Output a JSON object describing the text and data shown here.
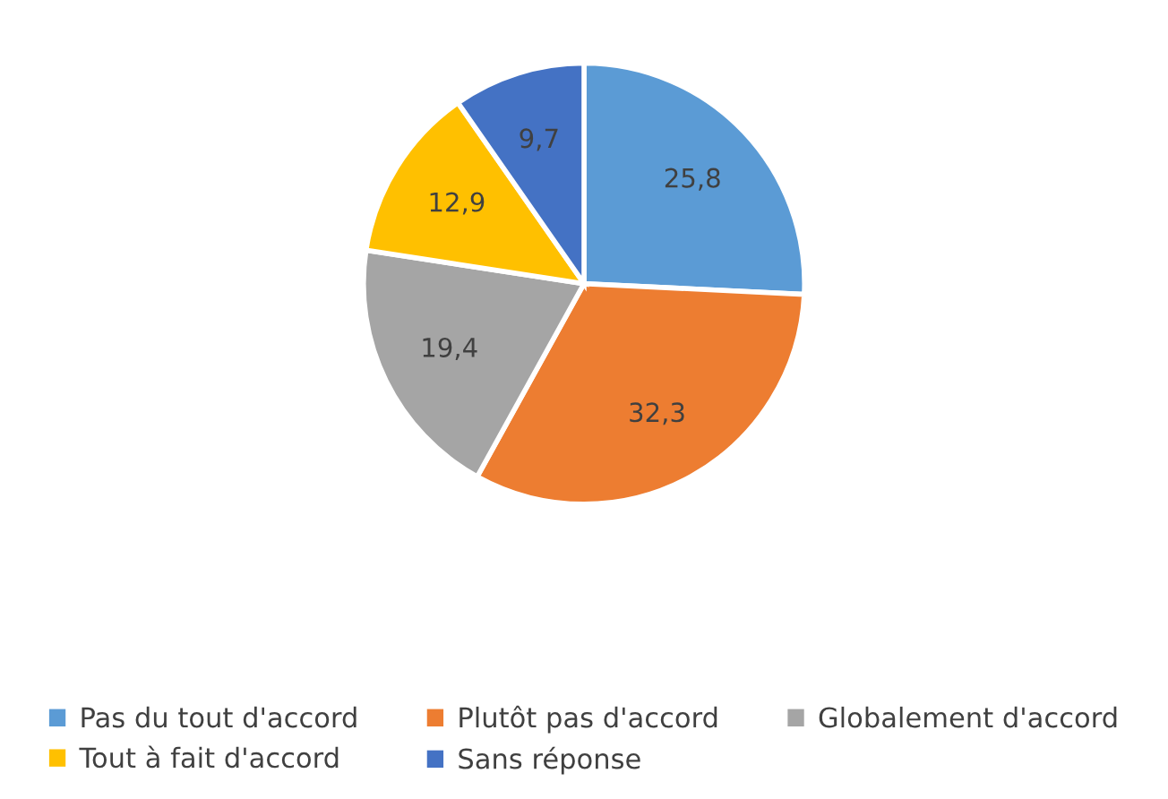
{
  "chart_data": {
    "type": "pie",
    "categories": [
      "Pas du tout d'accord",
      "Plutôt pas d'accord",
      "Globalement d'accord",
      "Tout à fait d'accord",
      "Sans réponse"
    ],
    "values": [
      25.8,
      32.3,
      19.4,
      12.9,
      9.7
    ],
    "value_labels": [
      "25,8",
      "32,3",
      "19,4",
      "12,9",
      "9,7"
    ],
    "colors": [
      "#5b9bd5",
      "#ed7d31",
      "#a5a5a5",
      "#ffc000",
      "#4472c4"
    ],
    "legend": "bottom"
  }
}
